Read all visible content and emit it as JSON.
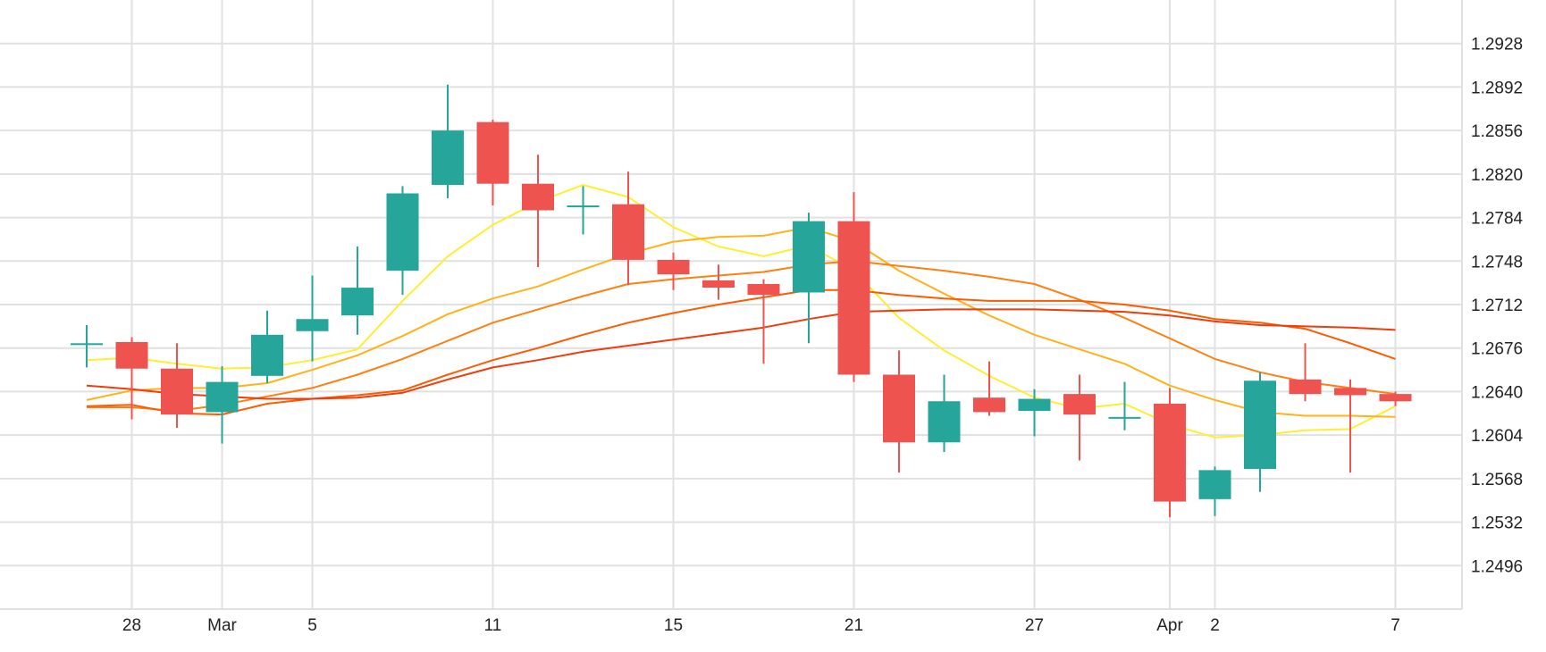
{
  "chart_data": {
    "type": "candlestick",
    "title": "",
    "xlabel": "",
    "ylabel": "",
    "ylim": [
      1.246,
      1.2964
    ],
    "grid": true,
    "y_axis_position": "right",
    "y_ticks": [
      "1.2496",
      "1.2532",
      "1.2568",
      "1.2604",
      "1.2640",
      "1.2676",
      "1.2712",
      "1.2748",
      "1.2784",
      "1.2820",
      "1.2856",
      "1.2892",
      "1.2928"
    ],
    "x_ticks": [
      {
        "label": "28",
        "index": 1
      },
      {
        "label": "Mar",
        "index": 3
      },
      {
        "label": "5",
        "index": 5
      },
      {
        "label": "11",
        "index": 9
      },
      {
        "label": "15",
        "index": 13
      },
      {
        "label": "21",
        "index": 17
      },
      {
        "label": "27",
        "index": 21
      },
      {
        "label": "Apr",
        "index": 24
      },
      {
        "label": "2",
        "index": 25
      },
      {
        "label": "7",
        "index": 29
      }
    ],
    "candles": [
      {
        "open": 1.268,
        "high": 1.2695,
        "low": 1.266,
        "close": 1.268
      },
      {
        "open": 1.2681,
        "high": 1.2685,
        "low": 1.2617,
        "close": 1.2659
      },
      {
        "open": 1.2659,
        "high": 1.268,
        "low": 1.261,
        "close": 1.2621
      },
      {
        "open": 1.2623,
        "high": 1.2661,
        "low": 1.2597,
        "close": 1.2648
      },
      {
        "open": 1.2653,
        "high": 1.2707,
        "low": 1.2647,
        "close": 1.2687
      },
      {
        "open": 1.269,
        "high": 1.2736,
        "low": 1.2665,
        "close": 1.27
      },
      {
        "open": 1.2703,
        "high": 1.276,
        "low": 1.2687,
        "close": 1.2726
      },
      {
        "open": 1.274,
        "high": 1.281,
        "low": 1.272,
        "close": 1.2804
      },
      {
        "open": 1.2811,
        "high": 1.2894,
        "low": 1.28,
        "close": 1.2856
      },
      {
        "open": 1.2863,
        "high": 1.2865,
        "low": 1.2794,
        "close": 1.2812
      },
      {
        "open": 1.2812,
        "high": 1.2836,
        "low": 1.2743,
        "close": 1.279
      },
      {
        "open": 1.2794,
        "high": 1.281,
        "low": 1.277,
        "close": 1.2794
      },
      {
        "open": 1.2795,
        "high": 1.2822,
        "low": 1.2728,
        "close": 1.2749
      },
      {
        "open": 1.2749,
        "high": 1.2755,
        "low": 1.2724,
        "close": 1.2737
      },
      {
        "open": 1.2732,
        "high": 1.2745,
        "low": 1.2716,
        "close": 1.2726
      },
      {
        "open": 1.2729,
        "high": 1.2733,
        "low": 1.2663,
        "close": 1.272
      },
      {
        "open": 1.2722,
        "high": 1.2788,
        "low": 1.268,
        "close": 1.2781
      },
      {
        "open": 1.2781,
        "high": 1.2805,
        "low": 1.2648,
        "close": 1.2654
      },
      {
        "open": 1.2654,
        "high": 1.2674,
        "low": 1.2573,
        "close": 1.2598
      },
      {
        "open": 1.2598,
        "high": 1.2654,
        "low": 1.259,
        "close": 1.2632
      },
      {
        "open": 1.2635,
        "high": 1.2665,
        "low": 1.262,
        "close": 1.2623
      },
      {
        "open": 1.2624,
        "high": 1.2642,
        "low": 1.2603,
        "close": 1.2634
      },
      {
        "open": 1.2638,
        "high": 1.2654,
        "low": 1.2583,
        "close": 1.2621
      },
      {
        "open": 1.2619,
        "high": 1.2648,
        "low": 1.2608,
        "close": 1.2619
      },
      {
        "open": 1.263,
        "high": 1.2643,
        "low": 1.2536,
        "close": 1.2549
      },
      {
        "open": 1.2551,
        "high": 1.2578,
        "low": 1.2537,
        "close": 1.2575
      },
      {
        "open": 1.2576,
        "high": 1.2656,
        "low": 1.2557,
        "close": 1.2649
      },
      {
        "open": 1.265,
        "high": 1.268,
        "low": 1.2632,
        "close": 1.2638
      },
      {
        "open": 1.2643,
        "high": 1.265,
        "low": 1.2573,
        "close": 1.2637
      },
      {
        "open": 1.2638,
        "high": 1.264,
        "low": 1.2628,
        "close": 1.2632
      }
    ],
    "moving_averages": [
      {
        "color": "#ffee33",
        "values": [
          1.2666,
          1.2668,
          1.2663,
          1.2659,
          1.266,
          1.2666,
          1.2675,
          1.2715,
          1.2752,
          1.2778,
          1.2797,
          1.2811,
          1.2801,
          1.2776,
          1.276,
          1.2752,
          1.2761,
          1.274,
          1.2701,
          1.2674,
          1.2653,
          1.2635,
          1.2626,
          1.263,
          1.2613,
          1.2602,
          1.2604,
          1.2608,
          1.2609,
          1.2628
        ]
      },
      {
        "color": "#ffb21a",
        "values": [
          1.2633,
          1.2641,
          1.2643,
          1.2643,
          1.2647,
          1.2658,
          1.267,
          1.2686,
          1.2704,
          1.2717,
          1.2727,
          1.2741,
          1.2754,
          1.2764,
          1.2768,
          1.2769,
          1.2776,
          1.2764,
          1.274,
          1.2721,
          1.2703,
          1.2687,
          1.2675,
          1.2663,
          1.2645,
          1.2633,
          1.2623,
          1.262,
          1.262,
          1.2619
        ]
      },
      {
        "color": "#ff7f11",
        "values": [
          1.2627,
          1.2627,
          1.2624,
          1.2629,
          1.2636,
          1.2643,
          1.2654,
          1.2667,
          1.2682,
          1.2697,
          1.2708,
          1.2719,
          1.2729,
          1.2733,
          1.2736,
          1.2739,
          1.2745,
          1.2748,
          1.2744,
          1.274,
          1.2735,
          1.2729,
          1.2716,
          1.2701,
          1.2684,
          1.2667,
          1.2656,
          1.2648,
          1.2643,
          1.2638
        ]
      },
      {
        "color": "#ff5a00",
        "values": [
          1.2628,
          1.2629,
          1.2622,
          1.2621,
          1.263,
          1.2634,
          1.2637,
          1.2641,
          1.2654,
          1.2666,
          1.2676,
          1.2687,
          1.2697,
          1.2705,
          1.2712,
          1.2718,
          1.2724,
          1.2724,
          1.272,
          1.2717,
          1.2715,
          1.2715,
          1.2715,
          1.2712,
          1.2707,
          1.27,
          1.2697,
          1.2692,
          1.268,
          1.2667
        ]
      },
      {
        "color": "#f03c0a",
        "values": [
          1.2645,
          1.2642,
          1.2638,
          1.2636,
          1.2634,
          1.2634,
          1.2635,
          1.2639,
          1.265,
          1.266,
          1.2666,
          1.2673,
          1.2678,
          1.2683,
          1.2688,
          1.2693,
          1.27,
          1.2706,
          1.2707,
          1.2708,
          1.2708,
          1.2708,
          1.2707,
          1.2706,
          1.2703,
          1.2698,
          1.2695,
          1.2694,
          1.2693,
          1.2691
        ]
      }
    ],
    "colors": {
      "up": "#26a69a",
      "down": "#ef5350",
      "grid": "#e1e1e1",
      "text": "#222222"
    }
  }
}
